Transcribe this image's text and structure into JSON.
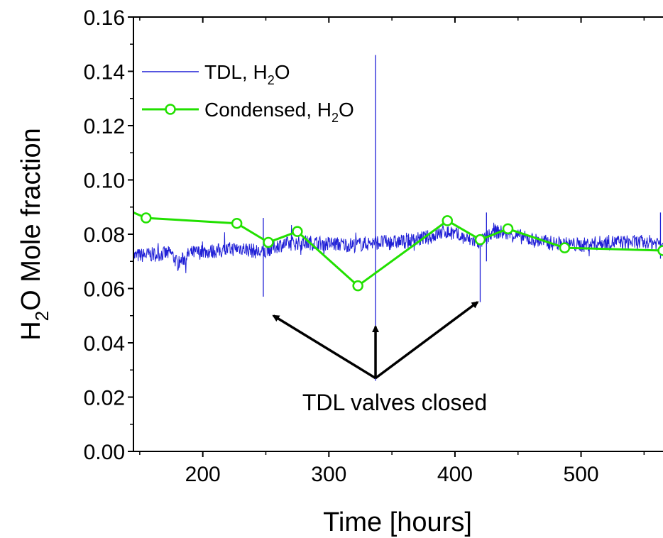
{
  "chart_data": {
    "type": "line",
    "xlabel": "Time [hours]",
    "ylabel_main": "H",
    "ylabel_sub": "2",
    "ylabel_rest": "O Mole fraction",
    "xlim": [
      145,
      565
    ],
    "ylim": [
      0,
      0.16
    ],
    "x_ticks": [
      200,
      300,
      400,
      500
    ],
    "x_tick_labels": [
      "200",
      "300",
      "400",
      "500"
    ],
    "y_ticks": [
      0,
      0.02,
      0.04,
      0.06,
      0.08,
      0.1,
      0.12,
      0.14,
      0.16
    ],
    "y_tick_labels": [
      "0.00",
      "0.02",
      "0.04",
      "0.06",
      "0.08",
      "0.10",
      "0.12",
      "0.14",
      "0.16"
    ],
    "legend_position": "top-left",
    "series": [
      {
        "name_main": "TDL, H",
        "name_sub": "2",
        "name_rest": "O",
        "color": "#1f1fd6",
        "style": "noisy-line",
        "x": [
          145,
          160,
          175,
          180,
          190,
          200,
          215,
          230,
          248,
          260,
          280,
          300,
          320,
          337,
          350,
          365,
          380,
          392,
          400,
          410,
          420,
          432,
          445,
          460,
          480,
          500,
          520,
          540,
          565
        ],
        "y": [
          0.072,
          0.0725,
          0.073,
          0.069,
          0.073,
          0.0735,
          0.074,
          0.075,
          0.073,
          0.076,
          0.077,
          0.0765,
          0.076,
          0.077,
          0.077,
          0.0775,
          0.079,
          0.081,
          0.08,
          0.078,
          0.077,
          0.081,
          0.08,
          0.078,
          0.0765,
          0.076,
          0.077,
          0.077,
          0.077
        ],
        "spikes": [
          {
            "x": 248,
            "min": 0.057,
            "max": 0.086
          },
          {
            "x": 337,
            "min": 0.026,
            "max": 0.146
          },
          {
            "x": 420,
            "min": 0.055,
            "max": 0.08
          },
          {
            "x": 425,
            "min": 0.07,
            "max": 0.088
          },
          {
            "x": 563,
            "min": 0.071,
            "max": 0.088
          }
        ]
      },
      {
        "name_main": "Condensed, H",
        "name_sub": "2",
        "name_rest": "O",
        "color": "#22e000",
        "style": "line-circle-markers",
        "x": [
          140,
          155,
          227,
          252,
          275,
          323,
          394,
          420,
          442,
          487,
          565
        ],
        "y": [
          0.089,
          0.086,
          0.084,
          0.077,
          0.081,
          0.061,
          0.085,
          0.078,
          0.082,
          0.075,
          0.074
        ],
        "marker_start_index": 1
      }
    ],
    "annotations": [
      {
        "text": "TDL valves closed",
        "origin": {
          "x": 337,
          "y": 0.027
        },
        "arrow_targets": [
          {
            "x": 256,
            "y": 0.05
          },
          {
            "x": 337,
            "y": 0.046
          },
          {
            "x": 418,
            "y": 0.055
          }
        ]
      }
    ]
  }
}
